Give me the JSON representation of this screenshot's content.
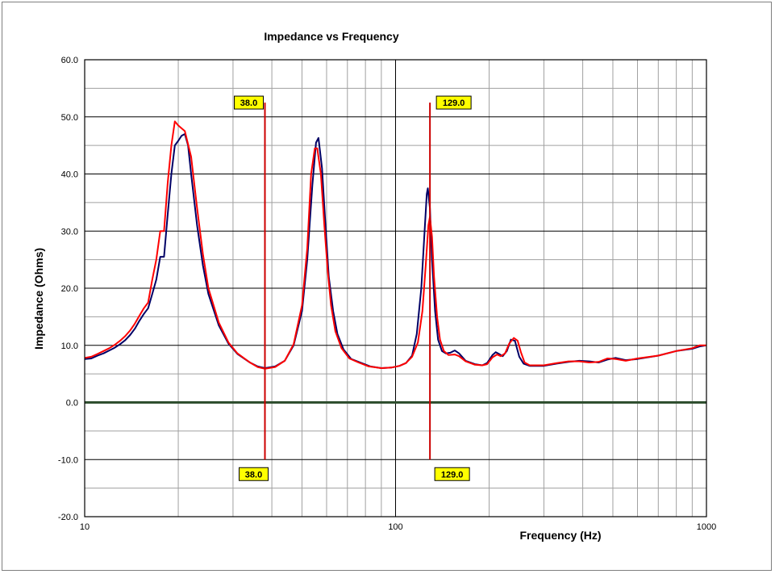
{
  "chart_data": {
    "type": "line",
    "title": "Impedance vs Frequency",
    "xlabel": "Frequency (Hz)",
    "ylabel": "Impedance (Ohms)",
    "x_scale": "log",
    "xlim": [
      10,
      1000
    ],
    "ylim": [
      -20,
      60
    ],
    "y_ticks": [
      "60.0",
      "50.0",
      "40.0",
      "30.0",
      "20.0",
      "10.0",
      "0.0",
      "-10.0",
      "-20.0"
    ],
    "x_ticks": [
      "10",
      "100",
      "1000"
    ],
    "grid": true,
    "colors": {
      "series_a": "#000066",
      "series_b": "#ff0000",
      "zero_line": "#2f4f2f",
      "marker": "#cc0000",
      "marker_label_bg": "#ffff00"
    },
    "markers": [
      {
        "x": 38.0,
        "label": "38.0"
      },
      {
        "x": 129.0,
        "label": "129.0"
      }
    ],
    "series": [
      {
        "color": "#000066",
        "points": [
          [
            10,
            7.6
          ],
          [
            10.5,
            7.7
          ],
          [
            11,
            8.2
          ],
          [
            11.5,
            8.6
          ],
          [
            12,
            9.1
          ],
          [
            12.5,
            9.6
          ],
          [
            13,
            10.2
          ],
          [
            13.5,
            10.9
          ],
          [
            14,
            11.8
          ],
          [
            14.5,
            12.9
          ],
          [
            15,
            14.3
          ],
          [
            15.5,
            15.5
          ],
          [
            16,
            16.5
          ],
          [
            16.5,
            19
          ],
          [
            17,
            21.5
          ],
          [
            17.5,
            25.5
          ],
          [
            18,
            25.5
          ],
          [
            18.5,
            33
          ],
          [
            19,
            40
          ],
          [
            19.5,
            45
          ],
          [
            20,
            45.8
          ],
          [
            20.5,
            46.7
          ],
          [
            21,
            47
          ],
          [
            21.5,
            45
          ],
          [
            22,
            40
          ],
          [
            23,
            31
          ],
          [
            24,
            24
          ],
          [
            25,
            19
          ],
          [
            27,
            13.5
          ],
          [
            29,
            10.3
          ],
          [
            31,
            8.5
          ],
          [
            34,
            7
          ],
          [
            36,
            6.3
          ],
          [
            38,
            6
          ],
          [
            41,
            6.3
          ],
          [
            44,
            7.3
          ],
          [
            47,
            10
          ],
          [
            50,
            16
          ],
          [
            52,
            25
          ],
          [
            54,
            38
          ],
          [
            55.5,
            45.5
          ],
          [
            56.5,
            46.3
          ],
          [
            58,
            41
          ],
          [
            59.5,
            31
          ],
          [
            61,
            22
          ],
          [
            63,
            16
          ],
          [
            65,
            12
          ],
          [
            68,
            9.3
          ],
          [
            72,
            7.6
          ],
          [
            77,
            7
          ],
          [
            83,
            6.3
          ],
          [
            90,
            6
          ],
          [
            97,
            6.1
          ],
          [
            103,
            6.4
          ],
          [
            108,
            6.9
          ],
          [
            113,
            8.2
          ],
          [
            117,
            12
          ],
          [
            121,
            20
          ],
          [
            124,
            30
          ],
          [
            126,
            36.5
          ],
          [
            127,
            37.5
          ],
          [
            129,
            34
          ],
          [
            131,
            25
          ],
          [
            134,
            16
          ],
          [
            137,
            11
          ],
          [
            141,
            9
          ],
          [
            145,
            8.6
          ],
          [
            150,
            8.7
          ],
          [
            155,
            9.1
          ],
          [
            160,
            8.6
          ],
          [
            168,
            7.3
          ],
          [
            180,
            6.7
          ],
          [
            190,
            6.5
          ],
          [
            197,
            6.9
          ],
          [
            205,
            8.3
          ],
          [
            210,
            8.8
          ],
          [
            215,
            8.5
          ],
          [
            221,
            8.1
          ],
          [
            228,
            9
          ],
          [
            235,
            11
          ],
          [
            242,
            10.8
          ],
          [
            250,
            8
          ],
          [
            258,
            6.8
          ],
          [
            270,
            6.4
          ],
          [
            300,
            6.4
          ],
          [
            330,
            6.8
          ],
          [
            360,
            7.1
          ],
          [
            390,
            7.3
          ],
          [
            420,
            7.2
          ],
          [
            450,
            7
          ],
          [
            480,
            7.5
          ],
          [
            510,
            7.8
          ],
          [
            550,
            7.4
          ],
          [
            600,
            7.6
          ],
          [
            700,
            8.2
          ],
          [
            800,
            9
          ],
          [
            900,
            9.4
          ],
          [
            950,
            9.8
          ],
          [
            1000,
            10
          ]
        ]
      },
      {
        "color": "#ff0000",
        "points": [
          [
            10,
            7.8
          ],
          [
            10.5,
            8
          ],
          [
            11,
            8.5
          ],
          [
            11.5,
            9
          ],
          [
            12,
            9.5
          ],
          [
            12.5,
            10.1
          ],
          [
            13,
            10.8
          ],
          [
            13.5,
            11.6
          ],
          [
            14,
            12.6
          ],
          [
            14.5,
            13.8
          ],
          [
            15,
            15.2
          ],
          [
            15.5,
            16.5
          ],
          [
            16,
            17.5
          ],
          [
            16.5,
            21.5
          ],
          [
            17,
            25
          ],
          [
            17.5,
            30
          ],
          [
            18,
            30
          ],
          [
            18.5,
            38.5
          ],
          [
            19,
            45
          ],
          [
            19.5,
            49.2
          ],
          [
            20,
            48.5
          ],
          [
            21,
            47.5
          ],
          [
            22,
            43
          ],
          [
            23,
            34
          ],
          [
            24,
            26
          ],
          [
            25,
            20
          ],
          [
            27,
            14
          ],
          [
            29,
            10.5
          ],
          [
            31,
            8.6
          ],
          [
            34,
            7
          ],
          [
            36,
            6.2
          ],
          [
            38,
            5.9
          ],
          [
            41,
            6.2
          ],
          [
            44,
            7.3
          ],
          [
            47,
            10.2
          ],
          [
            50,
            17
          ],
          [
            52,
            27
          ],
          [
            53.5,
            40
          ],
          [
            55,
            44.5
          ],
          [
            56,
            44.5
          ],
          [
            57.5,
            40
          ],
          [
            59,
            31
          ],
          [
            60.5,
            23
          ],
          [
            62,
            17
          ],
          [
            64,
            12.5
          ],
          [
            67,
            9.5
          ],
          [
            71,
            7.7
          ],
          [
            76,
            7
          ],
          [
            82,
            6.3
          ],
          [
            90,
            6
          ],
          [
            97,
            6.1
          ],
          [
            103,
            6.4
          ],
          [
            108,
            6.9
          ],
          [
            113,
            8
          ],
          [
            118,
            10.5
          ],
          [
            122,
            16
          ],
          [
            125,
            24
          ],
          [
            127.5,
            31
          ],
          [
            129,
            32.5
          ],
          [
            131,
            29
          ],
          [
            133,
            22
          ],
          [
            136,
            15
          ],
          [
            139,
            11
          ],
          [
            143,
            9
          ],
          [
            148,
            8.3
          ],
          [
            155,
            8.4
          ],
          [
            160,
            8.1
          ],
          [
            168,
            7.2
          ],
          [
            180,
            6.6
          ],
          [
            190,
            6.5
          ],
          [
            197,
            6.7
          ],
          [
            205,
            7.9
          ],
          [
            212,
            8.4
          ],
          [
            218,
            8.1
          ],
          [
            225,
            8.6
          ],
          [
            232,
            10.3
          ],
          [
            240,
            11.3
          ],
          [
            247,
            10.8
          ],
          [
            253,
            8.8
          ],
          [
            260,
            7
          ],
          [
            270,
            6.5
          ],
          [
            300,
            6.5
          ],
          [
            330,
            6.9
          ],
          [
            360,
            7.2
          ],
          [
            390,
            7.2
          ],
          [
            420,
            7
          ],
          [
            450,
            7.1
          ],
          [
            480,
            7.7
          ],
          [
            510,
            7.6
          ],
          [
            550,
            7.3
          ],
          [
            600,
            7.7
          ],
          [
            700,
            8.2
          ],
          [
            800,
            9
          ],
          [
            900,
            9.5
          ],
          [
            950,
            10
          ],
          [
            1000,
            10
          ]
        ]
      }
    ]
  }
}
